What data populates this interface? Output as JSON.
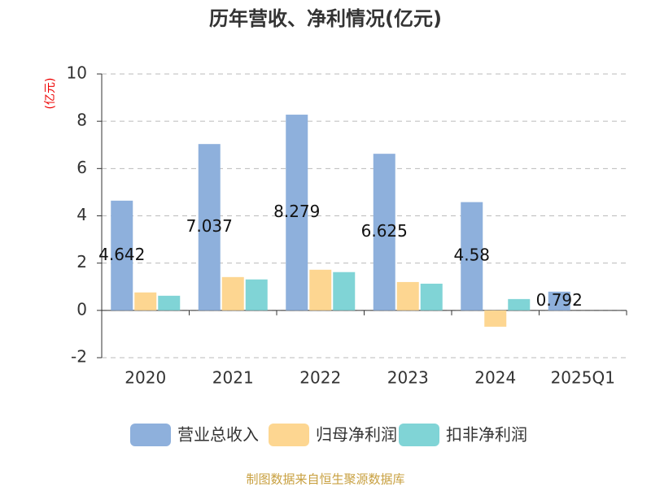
{
  "chart_data": {
    "type": "bar",
    "title": "历年营收、净利情况(亿元)",
    "y_label": "(亿元)",
    "source": "制图数据来自恒生聚源数据库",
    "categories": [
      "2020",
      "2021",
      "2022",
      "2023",
      "2024",
      "2025Q1"
    ],
    "series": [
      {
        "name": "营业总收入",
        "color": "#8eb0dc",
        "values": [
          4.642,
          7.037,
          8.279,
          6.625,
          4.58,
          0.792
        ]
      },
      {
        "name": "归母净利润",
        "color": "#fdd691",
        "values": [
          0.76,
          1.41,
          1.72,
          1.2,
          -0.69,
          null
        ]
      },
      {
        "name": "扣非净利润",
        "color": "#80d4d6",
        "values": [
          0.62,
          1.31,
          1.62,
          1.13,
          0.48,
          null
        ]
      }
    ],
    "data_label_series": 0,
    "ylim": [
      -2,
      10
    ],
    "yticks": [
      -2,
      0,
      2,
      4,
      6,
      8,
      10
    ],
    "grid": true
  }
}
